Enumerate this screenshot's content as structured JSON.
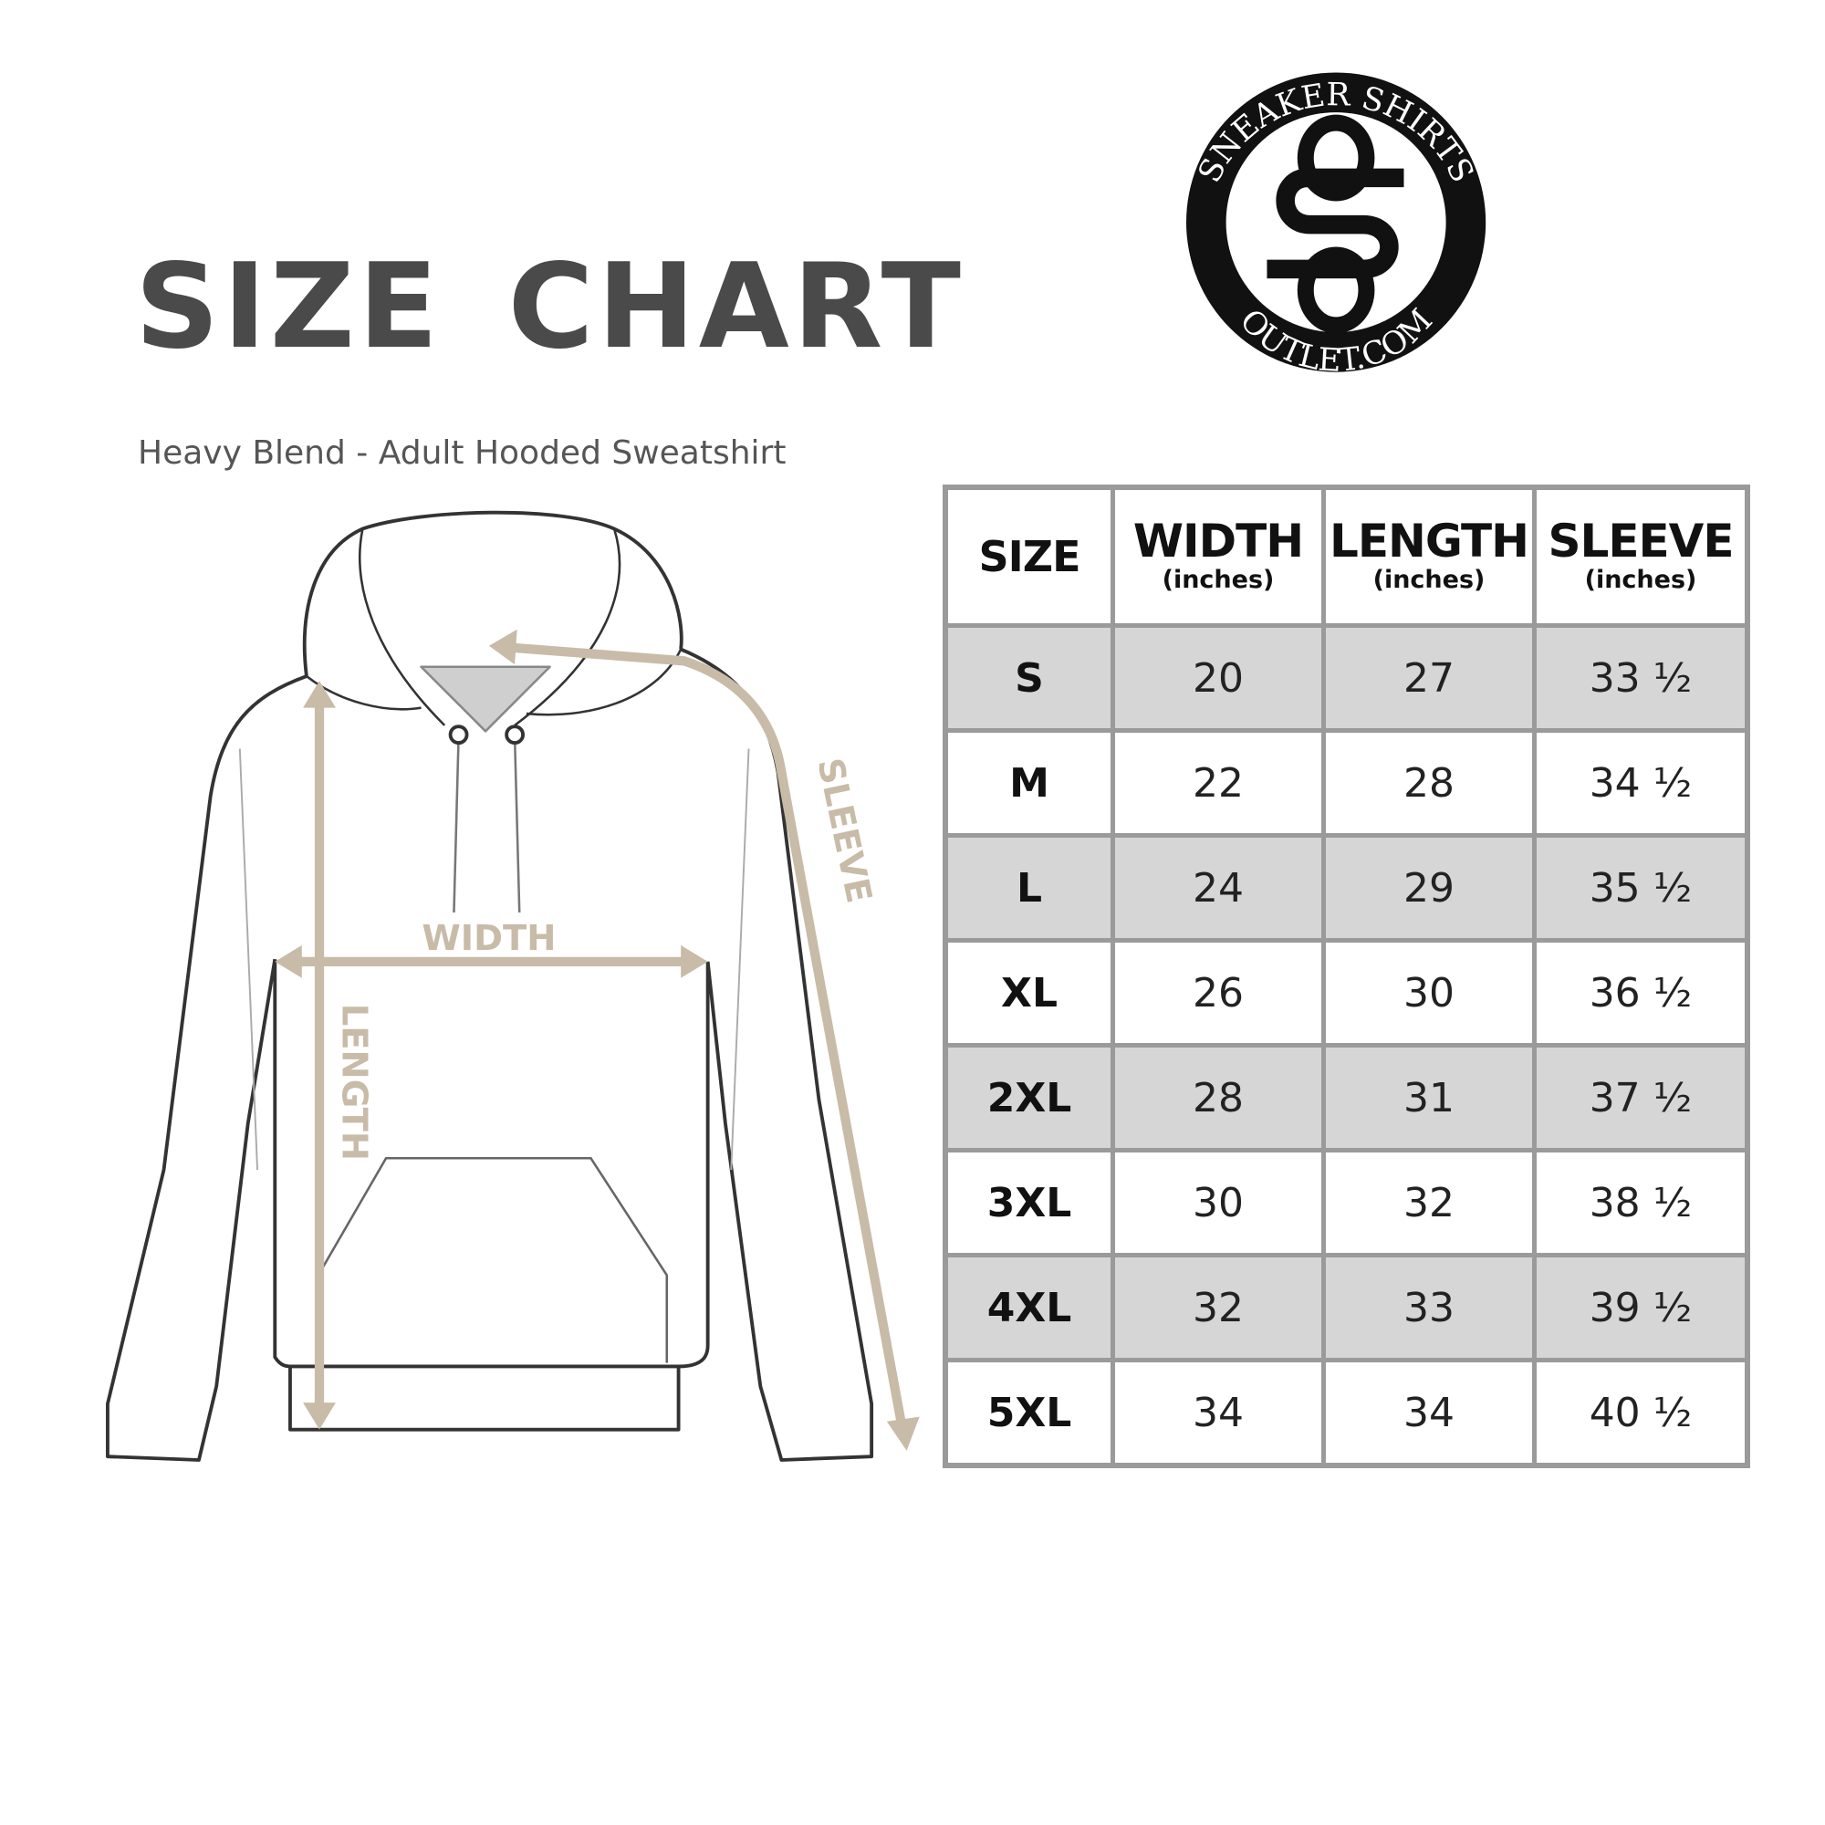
{
  "header": {
    "title": "SIZE CHART",
    "subtitle": "Heavy Blend - Adult Hooded Sweatshirt"
  },
  "logo": {
    "top_text": "SNEAKER SHIRTS",
    "bottom_text": "OUTLET.COM",
    "monogram": "SS"
  },
  "diagram": {
    "width_label": "WIDTH",
    "length_label": "LENGTH",
    "sleeve_label": "SLEEVE",
    "arrow_color": "#c8bba8",
    "outline_color": "#333333"
  },
  "table": {
    "headers": [
      {
        "label": "SIZE",
        "unit": ""
      },
      {
        "label": "WIDTH",
        "unit": "(inches)"
      },
      {
        "label": "LENGTH",
        "unit": "(inches)"
      },
      {
        "label": "SLEEVE",
        "unit": "(inches)"
      }
    ],
    "rows": [
      [
        "S",
        "20",
        "27",
        "33 ½"
      ],
      [
        "M",
        "22",
        "28",
        "34 ½"
      ],
      [
        "L",
        "24",
        "29",
        "35 ½"
      ],
      [
        "XL",
        "26",
        "30",
        "36 ½"
      ],
      [
        "2XL",
        "28",
        "31",
        "37 ½"
      ],
      [
        "3XL",
        "30",
        "32",
        "38 ½"
      ],
      [
        "4XL",
        "32",
        "33",
        "39 ½"
      ],
      [
        "5XL",
        "34",
        "34",
        "40 ½"
      ]
    ],
    "shade_color": "#d6d6d6",
    "border_color": "#9a9a9a"
  }
}
